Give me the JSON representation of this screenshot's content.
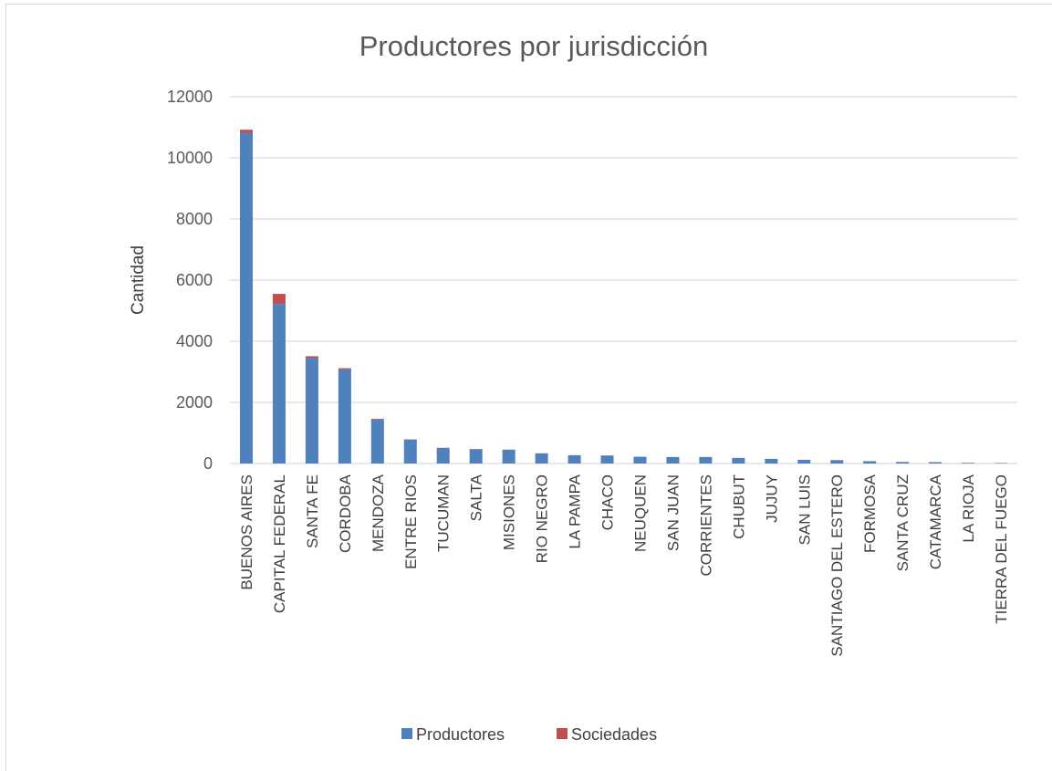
{
  "chart_data": {
    "type": "bar",
    "stacked": true,
    "title": "Productores por jurisdicción",
    "xlabel": "",
    "ylabel": "Cantidad",
    "ylim": [
      0,
      12000
    ],
    "yticks": [
      0,
      2000,
      4000,
      6000,
      8000,
      10000,
      12000
    ],
    "grid": true,
    "legend_position": "bottom",
    "categories": [
      "BUENOS AIRES",
      "CAPITAL FEDERAL",
      "SANTA FE",
      "CORDOBA",
      "MENDOZA",
      "ENTRE RIOS",
      "TUCUMAN",
      "SALTA",
      "MISIONES",
      "RIO NEGRO",
      "LA PAMPA",
      "CHACO",
      "NEUQUEN",
      "SAN JUAN",
      "CORRIENTES",
      "CHUBUT",
      "JUJUY",
      "SAN LUIS",
      "SANTIAGO DEL ESTERO",
      "FORMOSA",
      "SANTA CRUZ",
      "CATAMARCA",
      "LA RIOJA",
      "TIERRA DEL FUEGO"
    ],
    "series": [
      {
        "name": "Productores",
        "color": "#4f81bd",
        "values": [
          10820,
          5220,
          3450,
          3080,
          1440,
          780,
          510,
          470,
          450,
          330,
          270,
          260,
          220,
          210,
          210,
          180,
          150,
          120,
          110,
          75,
          50,
          45,
          22,
          15
        ]
      },
      {
        "name": "Sociedades",
        "color": "#c0504d",
        "values": [
          100,
          330,
          60,
          40,
          25,
          10,
          5,
          5,
          5,
          5,
          3,
          3,
          3,
          3,
          3,
          3,
          2,
          2,
          2,
          1,
          1,
          1,
          1,
          1
        ]
      }
    ]
  },
  "colors": {
    "grid": "#d9d9d9",
    "axis": "#d9d9d9"
  }
}
